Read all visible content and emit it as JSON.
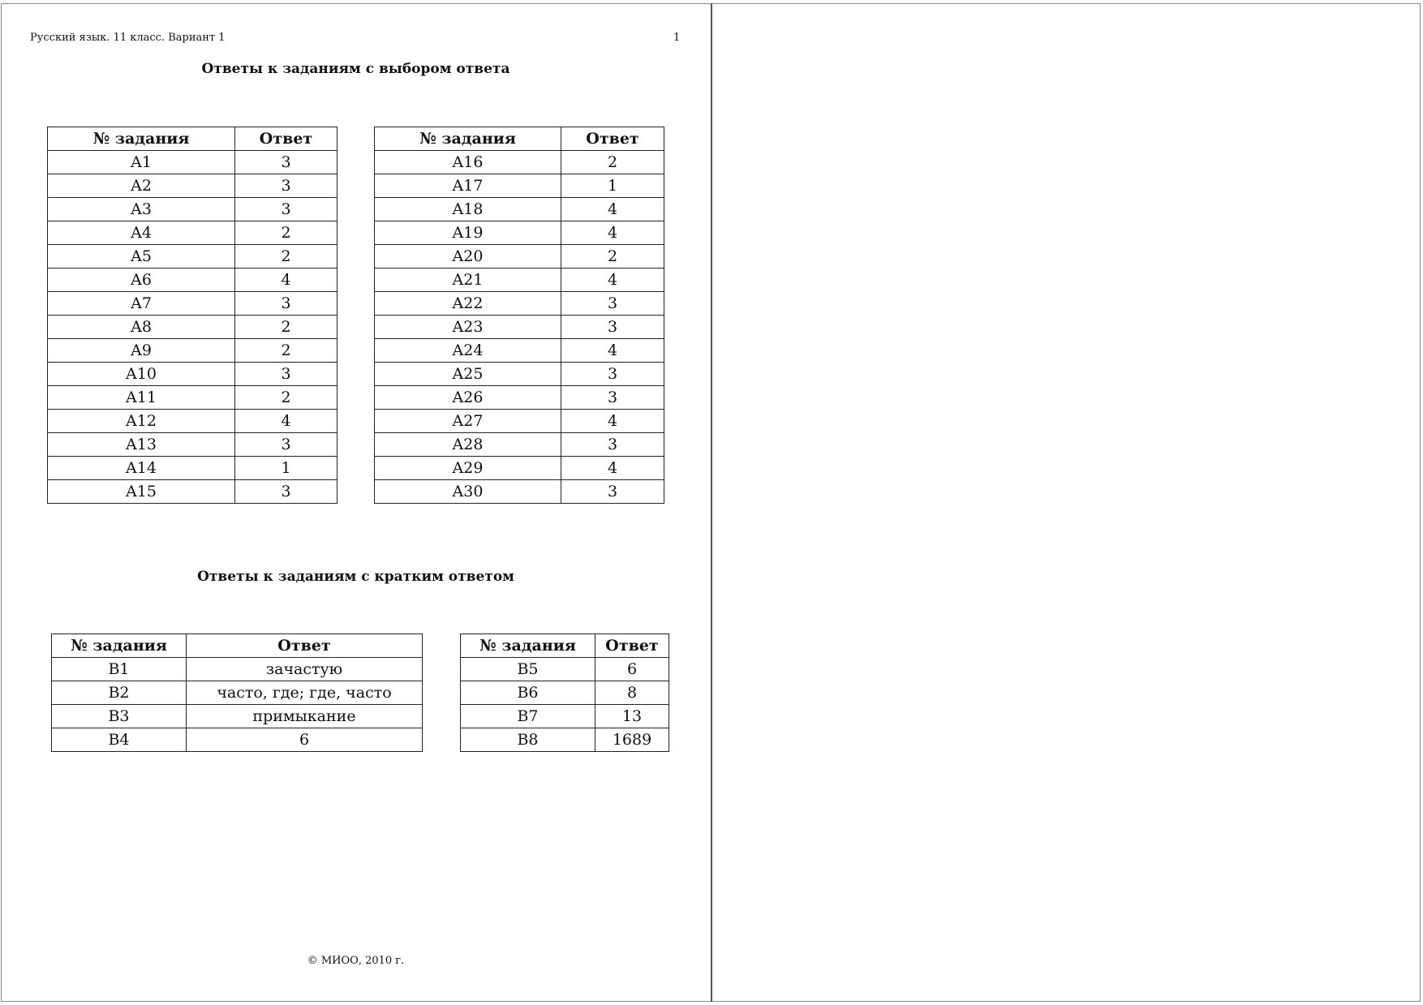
{
  "header": {
    "left": "Русский язык. 11 класс. Вариант 1",
    "page_number": "1"
  },
  "section1": {
    "title": "Ответы к заданиям с выбором ответа",
    "columns": [
      "№ задания",
      "Ответ"
    ],
    "left_table": [
      [
        "A1",
        "3"
      ],
      [
        "A2",
        "3"
      ],
      [
        "A3",
        "3"
      ],
      [
        "A4",
        "2"
      ],
      [
        "A5",
        "2"
      ],
      [
        "A6",
        "4"
      ],
      [
        "A7",
        "3"
      ],
      [
        "A8",
        "2"
      ],
      [
        "A9",
        "2"
      ],
      [
        "A10",
        "3"
      ],
      [
        "A11",
        "2"
      ],
      [
        "A12",
        "4"
      ],
      [
        "A13",
        "3"
      ],
      [
        "A14",
        "1"
      ],
      [
        "A15",
        "3"
      ]
    ],
    "right_table": [
      [
        "A16",
        "2"
      ],
      [
        "A17",
        "1"
      ],
      [
        "A18",
        "4"
      ],
      [
        "A19",
        "4"
      ],
      [
        "A20",
        "2"
      ],
      [
        "A21",
        "4"
      ],
      [
        "A22",
        "3"
      ],
      [
        "A23",
        "3"
      ],
      [
        "A24",
        "4"
      ],
      [
        "A25",
        "3"
      ],
      [
        "A26",
        "3"
      ],
      [
        "A27",
        "4"
      ],
      [
        "A28",
        "3"
      ],
      [
        "A29",
        "4"
      ],
      [
        "A30",
        "3"
      ]
    ]
  },
  "section2": {
    "title": "Ответы к заданиям с кратким ответом",
    "columns": [
      "№ задания",
      "Ответ"
    ],
    "left_table": [
      [
        "B1",
        "зачастую"
      ],
      [
        "B2",
        "часто, где; где, часто"
      ],
      [
        "B3",
        "примыкание"
      ],
      [
        "B4",
        "6"
      ]
    ],
    "right_table": [
      [
        "B5",
        "6"
      ],
      [
        "B6",
        "8"
      ],
      [
        "B7",
        "13"
      ],
      [
        "B8",
        "1689"
      ]
    ]
  },
  "footer": "© МИОО, 2010 г."
}
